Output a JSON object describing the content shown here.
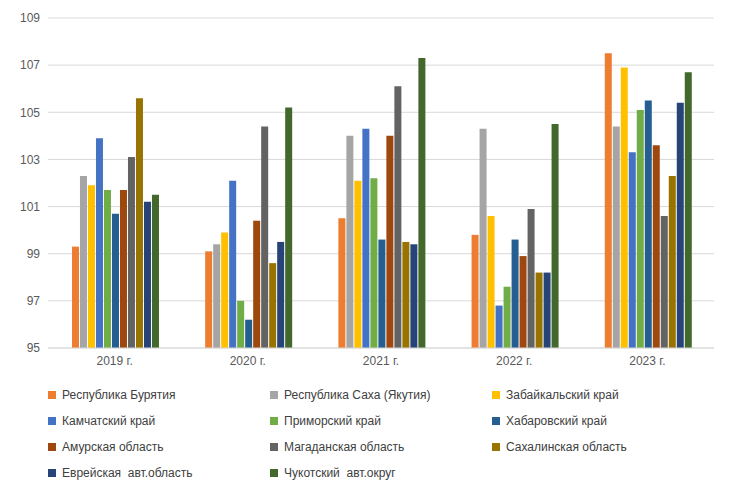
{
  "chart_data": {
    "type": "bar",
    "categories": [
      "2019 г.",
      "2020 г.",
      "2021 г.",
      "2022 г.",
      "2023 г."
    ],
    "series": [
      {
        "name": "Республика Бурятия",
        "color": "#ED7D31",
        "values": [
          99.3,
          99.1,
          100.5,
          99.8,
          107.5
        ]
      },
      {
        "name": "Республика Саха (Якутия)",
        "color": "#A5A5A5",
        "values": [
          102.3,
          99.4,
          104.0,
          104.3,
          104.4
        ]
      },
      {
        "name": "Забайкальский край",
        "color": "#FFC000",
        "values": [
          101.9,
          99.9,
          102.1,
          100.6,
          106.9
        ]
      },
      {
        "name": "Камчатский край",
        "color": "#4472C4",
        "values": [
          103.9,
          102.1,
          104.3,
          96.8,
          103.3
        ]
      },
      {
        "name": "Приморский край",
        "color": "#70AD47",
        "values": [
          101.7,
          97.0,
          102.2,
          97.6,
          105.1
        ]
      },
      {
        "name": "Хабаровский край",
        "color": "#255E91",
        "values": [
          100.7,
          96.2,
          99.6,
          99.6,
          105.5
        ]
      },
      {
        "name": "Амурская область",
        "color": "#9E480E",
        "values": [
          101.7,
          100.4,
          104.0,
          98.9,
          103.6
        ]
      },
      {
        "name": "Магаданская область",
        "color": "#636363",
        "values": [
          103.1,
          104.4,
          106.1,
          100.9,
          100.6
        ]
      },
      {
        "name": "Сахалинская область",
        "color": "#997300",
        "values": [
          105.6,
          98.6,
          99.5,
          98.2,
          102.3
        ]
      },
      {
        "name": "Еврейская  авт.область",
        "color": "#264478",
        "values": [
          101.2,
          99.5,
          99.4,
          98.2,
          105.4
        ]
      },
      {
        "name": "Чукотский  авт.округ",
        "color": "#43682B",
        "values": [
          101.5,
          105.2,
          107.3,
          104.5,
          106.7
        ]
      }
    ],
    "ylim": [
      95,
      109
    ],
    "yticks": [
      95,
      97,
      99,
      101,
      103,
      105,
      107,
      109
    ],
    "grid": true,
    "legend": "bottom"
  }
}
